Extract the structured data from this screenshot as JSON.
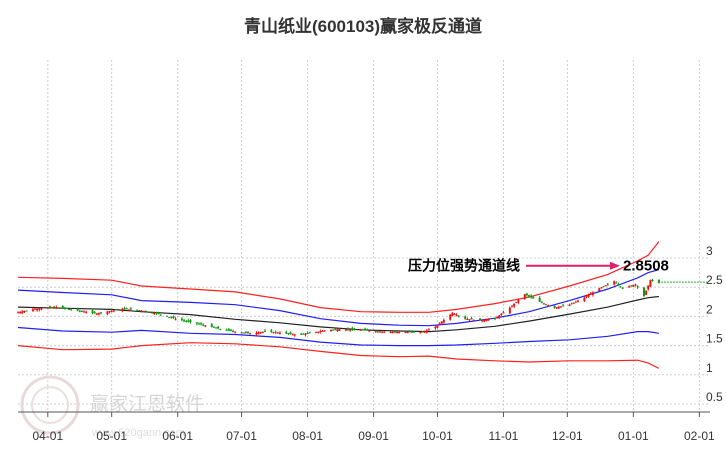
{
  "chart_data": {
    "type": "line",
    "title": "青山纸业(600103)赢家极反通道",
    "xlabel": "",
    "ylabel": "",
    "ylim": [
      0.5,
      3.3
    ],
    "yticks": [
      "0.5",
      "1",
      "1.5",
      "2",
      "2.5",
      "3"
    ],
    "ytick_values": [
      0.5,
      1,
      1.5,
      2,
      2.5,
      3
    ],
    "x_start": "2024-03-18",
    "x_end": "2025-02-06",
    "x_ticks": [
      {
        "label": "04-01",
        "date": "2024-04-01"
      },
      {
        "label": "05-01",
        "date": "2024-05-01"
      },
      {
        "label": "06-01",
        "date": "2024-06-01"
      },
      {
        "label": "07-01",
        "date": "2024-07-01"
      },
      {
        "label": "08-01",
        "date": "2024-08-01"
      },
      {
        "label": "09-01",
        "date": "2024-09-01"
      },
      {
        "label": "10-01",
        "date": "2024-10-01"
      },
      {
        "label": "11-01",
        "date": "2024-11-01"
      },
      {
        "label": "12-01",
        "date": "2024-12-01"
      },
      {
        "label": "01-01",
        "date": "2025-01-01"
      },
      {
        "label": "02-01",
        "date": "2025-02-01"
      }
    ],
    "grid": true,
    "colors": {
      "upper": "#ff2020",
      "mid": "#2020ee",
      "ma": "#222222",
      "up_candle": "#ee1111",
      "down_candle": "#119911",
      "arrow": "#e0206a",
      "last_price_line": "#22aa22"
    },
    "series": [
      {
        "key": "upper",
        "points": [
          [
            "2024-03-18",
            2.67
          ],
          [
            "2024-04-08",
            2.65
          ],
          [
            "2024-05-01",
            2.62
          ],
          [
            "2024-05-15",
            2.52
          ],
          [
            "2024-06-07",
            2.47
          ],
          [
            "2024-06-28",
            2.42
          ],
          [
            "2024-07-19",
            2.3
          ],
          [
            "2024-08-07",
            2.15
          ],
          [
            "2024-08-26",
            2.08
          ],
          [
            "2024-09-13",
            2.07
          ],
          [
            "2024-09-27",
            2.07
          ],
          [
            "2024-10-10",
            2.12
          ],
          [
            "2024-10-28",
            2.22
          ],
          [
            "2024-11-13",
            2.33
          ],
          [
            "2024-12-02",
            2.52
          ],
          [
            "2024-12-20",
            2.72
          ],
          [
            "2025-01-03",
            2.95
          ],
          [
            "2025-01-08",
            3.05
          ],
          [
            "2025-01-13",
            3.28
          ]
        ]
      },
      {
        "key": "mid_upper",
        "points": [
          [
            "2024-03-18",
            2.45
          ],
          [
            "2024-04-08",
            2.41
          ],
          [
            "2024-05-01",
            2.37
          ],
          [
            "2024-05-15",
            2.27
          ],
          [
            "2024-06-07",
            2.24
          ],
          [
            "2024-06-28",
            2.2
          ],
          [
            "2024-07-19",
            2.1
          ],
          [
            "2024-08-07",
            1.96
          ],
          [
            "2024-08-26",
            1.88
          ],
          [
            "2024-09-13",
            1.85
          ],
          [
            "2024-09-27",
            1.84
          ],
          [
            "2024-10-10",
            1.88
          ],
          [
            "2024-10-28",
            1.97
          ],
          [
            "2024-11-13",
            2.08
          ],
          [
            "2024-12-02",
            2.27
          ],
          [
            "2024-12-20",
            2.47
          ],
          [
            "2025-01-03",
            2.66
          ],
          [
            "2025-01-08",
            2.75
          ],
          [
            "2025-01-13",
            2.8
          ]
        ]
      },
      {
        "key": "ma",
        "points": [
          [
            "2024-03-18",
            2.16
          ],
          [
            "2024-04-08",
            2.14
          ],
          [
            "2024-05-01",
            2.12
          ],
          [
            "2024-05-15",
            2.08
          ],
          [
            "2024-06-07",
            2.03
          ],
          [
            "2024-06-28",
            1.95
          ],
          [
            "2024-07-19",
            1.89
          ],
          [
            "2024-08-07",
            1.82
          ],
          [
            "2024-08-26",
            1.77
          ],
          [
            "2024-09-13",
            1.75
          ],
          [
            "2024-09-27",
            1.74
          ],
          [
            "2024-10-10",
            1.77
          ],
          [
            "2024-10-28",
            1.83
          ],
          [
            "2024-11-13",
            1.92
          ],
          [
            "2024-12-02",
            2.04
          ],
          [
            "2024-12-20",
            2.16
          ],
          [
            "2025-01-03",
            2.28
          ],
          [
            "2025-01-08",
            2.32
          ],
          [
            "2025-01-13",
            2.34
          ]
        ]
      },
      {
        "key": "mid_lower",
        "points": [
          [
            "2024-03-18",
            1.81
          ],
          [
            "2024-04-08",
            1.75
          ],
          [
            "2024-05-01",
            1.73
          ],
          [
            "2024-05-15",
            1.76
          ],
          [
            "2024-06-07",
            1.71
          ],
          [
            "2024-06-28",
            1.69
          ],
          [
            "2024-07-19",
            1.64
          ],
          [
            "2024-08-07",
            1.56
          ],
          [
            "2024-08-26",
            1.51
          ],
          [
            "2024-09-13",
            1.5
          ],
          [
            "2024-09-27",
            1.5
          ],
          [
            "2024-10-10",
            1.51
          ],
          [
            "2024-10-28",
            1.54
          ],
          [
            "2024-11-13",
            1.57
          ],
          [
            "2024-12-02",
            1.6
          ],
          [
            "2024-12-20",
            1.66
          ],
          [
            "2025-01-03",
            1.74
          ],
          [
            "2025-01-08",
            1.74
          ],
          [
            "2025-01-13",
            1.71
          ]
        ]
      },
      {
        "key": "lower",
        "points": [
          [
            "2024-03-18",
            1.5
          ],
          [
            "2024-04-08",
            1.43
          ],
          [
            "2024-05-01",
            1.44
          ],
          [
            "2024-05-15",
            1.5
          ],
          [
            "2024-06-07",
            1.55
          ],
          [
            "2024-06-28",
            1.53
          ],
          [
            "2024-07-19",
            1.48
          ],
          [
            "2024-08-07",
            1.4
          ],
          [
            "2024-08-26",
            1.33
          ],
          [
            "2024-09-13",
            1.31
          ],
          [
            "2024-09-27",
            1.32
          ],
          [
            "2024-10-10",
            1.27
          ],
          [
            "2024-10-28",
            1.24
          ],
          [
            "2024-11-13",
            1.22
          ],
          [
            "2024-12-02",
            1.24
          ],
          [
            "2024-12-20",
            1.24
          ],
          [
            "2025-01-03",
            1.25
          ],
          [
            "2025-01-08",
            1.2
          ],
          [
            "2025-01-13",
            1.11
          ]
        ]
      },
      {
        "key": "close",
        "points": [
          [
            "2024-03-18",
            2.07
          ],
          [
            "2024-03-26",
            2.13
          ],
          [
            "2024-04-05",
            2.16
          ],
          [
            "2024-04-15",
            2.1
          ],
          [
            "2024-04-24",
            2.05
          ],
          [
            "2024-05-06",
            2.13
          ],
          [
            "2024-05-15",
            2.1
          ],
          [
            "2024-05-22",
            2.05
          ],
          [
            "2024-05-31",
            1.96
          ],
          [
            "2024-06-12",
            1.86
          ],
          [
            "2024-06-20",
            1.79
          ],
          [
            "2024-06-28",
            1.74
          ],
          [
            "2024-07-05",
            1.71
          ],
          [
            "2024-07-12",
            1.74
          ],
          [
            "2024-07-19",
            1.72
          ],
          [
            "2024-07-26",
            1.69
          ],
          [
            "2024-08-02",
            1.71
          ],
          [
            "2024-08-09",
            1.76
          ],
          [
            "2024-08-16",
            1.78
          ],
          [
            "2024-08-26",
            1.77
          ],
          [
            "2024-09-04",
            1.74
          ],
          [
            "2024-09-13",
            1.73
          ],
          [
            "2024-09-24",
            1.73
          ],
          [
            "2024-09-30",
            1.82
          ],
          [
            "2024-10-08",
            2.06
          ],
          [
            "2024-10-14",
            1.96
          ],
          [
            "2024-10-21",
            1.93
          ],
          [
            "2024-10-28",
            1.96
          ],
          [
            "2024-11-04",
            2.15
          ],
          [
            "2024-11-11",
            2.38
          ],
          [
            "2024-11-18",
            2.25
          ],
          [
            "2024-11-25",
            2.15
          ],
          [
            "2024-12-02",
            2.2
          ],
          [
            "2024-12-09",
            2.32
          ],
          [
            "2024-12-16",
            2.48
          ],
          [
            "2024-12-23",
            2.6
          ],
          [
            "2024-12-27",
            2.48
          ],
          [
            "2025-01-02",
            2.55
          ],
          [
            "2025-01-06",
            2.35
          ],
          [
            "2025-01-09",
            2.62
          ],
          [
            "2025-01-13",
            2.57
          ]
        ]
      }
    ],
    "annotation": "压力位强势通道线",
    "last_price": "2.8508"
  },
  "watermark": {
    "name": "赢家江恩软件",
    "url": "www.520gann.com"
  }
}
